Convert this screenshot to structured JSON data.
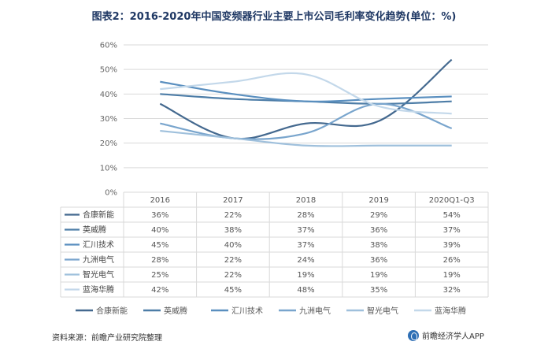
{
  "title": "图表2：2016-2020年中国变频器行业主要上市公司毛利率变化趋势(单位：%)",
  "footer": {
    "source": "资料来源：前瞻产业研究院整理",
    "brand": "前瞻经济学人APP",
    "brand_icon": "qianzhan-logo-icon"
  },
  "chart_data": {
    "type": "line",
    "title": "图表2：2016-2020年中国变频器行业主要上市公司毛利率变化趋势(单位：%)",
    "categories": [
      "2016",
      "2017",
      "2018",
      "2019",
      "2020Q1-Q3"
    ],
    "ylim": [
      0,
      60
    ],
    "yticks": [
      "0%",
      "10%",
      "20%",
      "30%",
      "40%",
      "50%",
      "60%"
    ],
    "grid": true,
    "legend_position": "bottom",
    "series": [
      {
        "name": "合康新能",
        "values": [
          36,
          22,
          28,
          29,
          54
        ],
        "labels": [
          "36%",
          "22%",
          "28%",
          "29%",
          "54%"
        ],
        "color": "#44698f"
      },
      {
        "name": "英威腾",
        "values": [
          40,
          38,
          37,
          36,
          37
        ],
        "labels": [
          "40%",
          "38%",
          "37%",
          "36%",
          "37%"
        ],
        "color": "#4d7da7"
      },
      {
        "name": "汇川技术",
        "values": [
          45,
          40,
          37,
          38,
          39
        ],
        "labels": [
          "45%",
          "40%",
          "37%",
          "38%",
          "39%"
        ],
        "color": "#5a8fbf"
      },
      {
        "name": "九洲电气",
        "values": [
          28,
          22,
          24,
          36,
          26
        ],
        "labels": [
          "28%",
          "22%",
          "24%",
          "36%",
          "26%"
        ],
        "color": "#79a5cd"
      },
      {
        "name": "智光电气",
        "values": [
          25,
          22,
          19,
          19,
          19
        ],
        "labels": [
          "25%",
          "22%",
          "19%",
          "19%",
          "19%"
        ],
        "color": "#9fc0dc"
      },
      {
        "name": "蓝海华腾",
        "values": [
          42,
          45,
          48,
          35,
          32
        ],
        "labels": [
          "42%",
          "45%",
          "48%",
          "35%",
          "32%"
        ],
        "color": "#c3d8ea"
      }
    ]
  }
}
